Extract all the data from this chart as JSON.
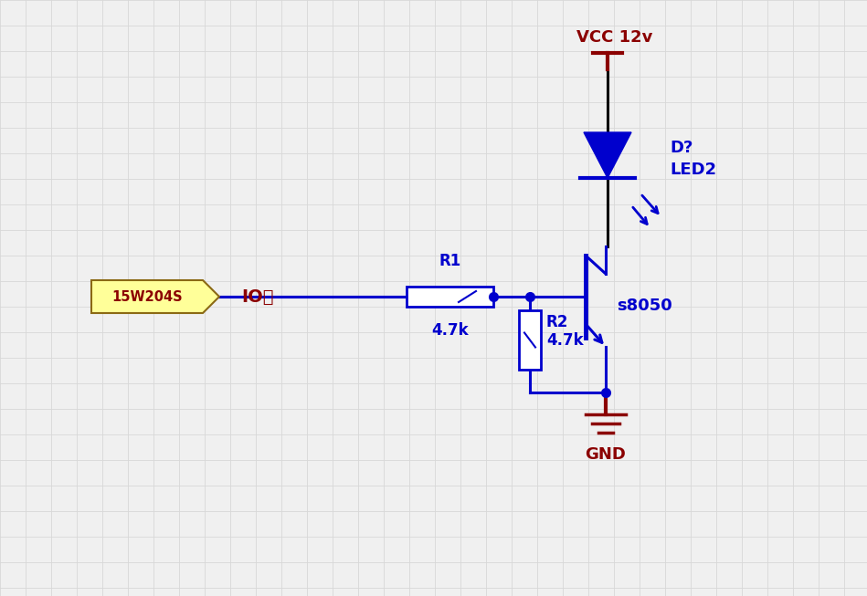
{
  "bg_color": "#f0f0f0",
  "grid_color": "#d8d8d8",
  "dark_red": "#8b0000",
  "blue": "#0000cd",
  "black": "#000000",
  "vcc_label": "VCC 12v",
  "gnd_label": "GND",
  "d_label": "D?",
  "led_label": "LED2",
  "r1_label": "R1",
  "r1_val": "4.7k",
  "r2_label": "R2",
  "r2_val": "4.7k",
  "transistor_label": "s8050",
  "io_label": "IO口",
  "connector_label": "15W204S"
}
